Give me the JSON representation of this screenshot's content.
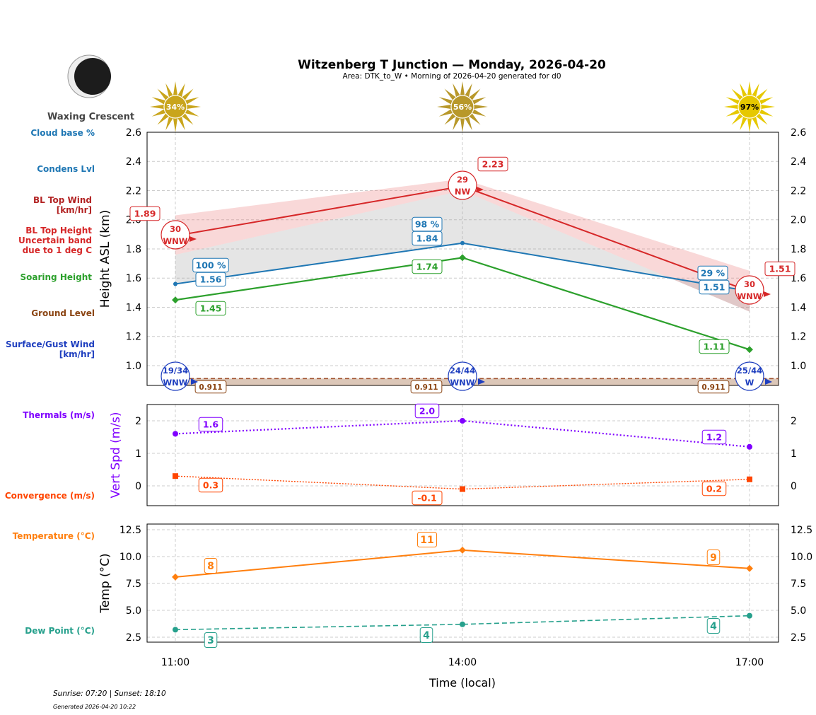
{
  "title": "Witzenberg T Junction — Monday, 2026-04-20",
  "subtitle": "Area: DTK_to_W • Morning of 2026-04-20 generated for d0",
  "moon_phase": "Waxing Crescent",
  "footer": {
    "sun": "Sunrise: 07:20 | Sunset: 18:10",
    "generated": "Generated 2026-04-20 10:22"
  },
  "colors": {
    "bl_top": "#d62728",
    "condens": "#1f77b4",
    "soaring": "#2ca02c",
    "ground": "#8b4513",
    "surface_wind": "#1f3fbf",
    "thermals": "#8000ff",
    "convergence": "#ff4500",
    "temperature": "#ff7f0e",
    "dew": "#26a08c"
  },
  "left_labels": {
    "cloud_base": "Cloud base %",
    "condens": "Condens Lvl",
    "bl_wind": [
      "BL Top Wind",
      "[km/hr]"
    ],
    "bl_height": [
      "BL Top Height",
      "Uncertain band",
      "due to 1 deg C"
    ],
    "soaring": "Soaring Height",
    "ground": "Ground Level",
    "surface_wind": [
      "Surface/Gust Wind",
      "[km/hr]"
    ],
    "thermals": "Thermals (m/s)",
    "convergence": "Convergence (m/s)",
    "temperature": "Temperature (°C)",
    "dew": "Dew Point (°C)"
  },
  "chart_data": [
    {
      "type": "line",
      "ylabel": "Height ASL (km)",
      "ylim": [
        0.864,
        2.6
      ],
      "yticks": [
        "1.0",
        "1.2",
        "1.4",
        "1.6",
        "1.8",
        "2.0",
        "2.2",
        "2.4",
        "2.6"
      ],
      "x": [
        "11:00",
        "14:00",
        "17:00"
      ],
      "grid": true,
      "sun_percent": [
        "34%",
        "56%",
        "97%"
      ],
      "bl_top": {
        "values": [
          1.89,
          2.23,
          1.51
        ],
        "labels": [
          "1.89",
          "2.23",
          "1.51"
        ],
        "band_low": [
          1.76,
          2.2,
          1.37
        ],
        "band_high": [
          2.03,
          2.28,
          1.65
        ]
      },
      "bl_wind": [
        {
          "speed": "30",
          "dir": "WNW"
        },
        {
          "speed": "29",
          "dir": "NW"
        },
        {
          "speed": "30",
          "dir": "WNW"
        }
      ],
      "condens": {
        "values": [
          1.56,
          1.84,
          1.51
        ],
        "labels": [
          "1.56",
          "1.84",
          "1.51"
        ],
        "cloud_pct": [
          "100 %",
          "98 %",
          "29 %"
        ]
      },
      "soaring": {
        "values": [
          1.45,
          1.74,
          1.11
        ],
        "labels": [
          "1.45",
          "1.74",
          "1.11"
        ]
      },
      "ground": {
        "values": [
          0.911,
          0.911,
          0.911
        ],
        "labels": [
          "0.911",
          "0.911",
          "0.911"
        ]
      },
      "surface_wind": [
        {
          "speed": "19/34",
          "dir": "WNW"
        },
        {
          "speed": "24/44",
          "dir": "WNW"
        },
        {
          "speed": "25/44",
          "dir": "W"
        }
      ]
    },
    {
      "type": "line",
      "ylabel": "Vert Spd (m/s)",
      "ylim": [
        -0.61,
        2.5
      ],
      "yticks": [
        "0",
        "1",
        "2"
      ],
      "x": [
        "11:00",
        "14:00",
        "17:00"
      ],
      "series": [
        {
          "key": "thermals",
          "values": [
            1.6,
            2.0,
            1.2
          ],
          "labels": [
            "1.6",
            "2.0",
            "1.2"
          ]
        },
        {
          "key": "convergence",
          "values": [
            0.3,
            -0.1,
            0.2
          ],
          "labels": [
            "0.3",
            "-0.1",
            "0.2"
          ]
        }
      ]
    },
    {
      "type": "line",
      "ylabel": "Temp (°C)",
      "xlabel": "Time (local)",
      "ylim": [
        2.04,
        13.03
      ],
      "yticks": [
        "2.5",
        "5.0",
        "7.5",
        "10.0",
        "12.5"
      ],
      "x": [
        "11:00",
        "14:00",
        "17:00"
      ],
      "series": [
        {
          "key": "temperature",
          "values": [
            8.1,
            10.6,
            8.9
          ],
          "labels": [
            "8",
            "11",
            "9"
          ]
        },
        {
          "key": "dew",
          "values": [
            3.2,
            3.7,
            4.5
          ],
          "labels": [
            "3",
            "4",
            "4"
          ]
        }
      ]
    }
  ]
}
